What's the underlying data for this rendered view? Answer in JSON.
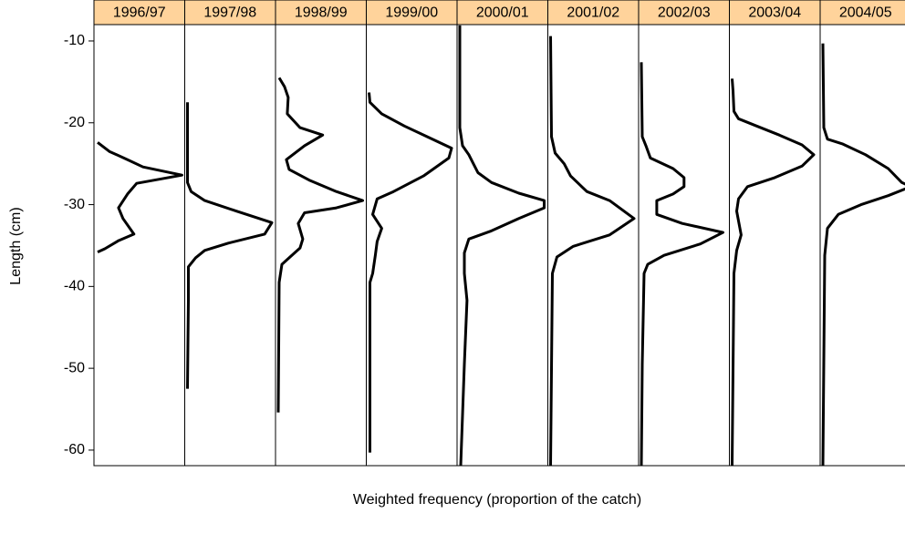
{
  "chart_data": {
    "type": "line",
    "ylabel": "Length (cm)",
    "xlabel": "Weighted frequency (proportion of the catch)",
    "ylim": [
      -61.9,
      -8
    ],
    "yticks": [
      -10,
      -20,
      -30,
      -40,
      -50,
      -60
    ],
    "xlim": [
      0,
      1
    ],
    "color": "#000000",
    "strip_color": "#ffd39b",
    "panels": [
      {
        "name": "1996/97",
        "y": [
          -22.4,
          -23.5,
          -24.5,
          -25.4,
          -26.4,
          -27.4,
          -28.7,
          -30.4,
          -31.7,
          -33.6,
          -34.4,
          -35.4,
          -35.8
        ],
        "x": [
          0.04,
          0.17,
          0.37,
          0.54,
          0.97,
          0.47,
          0.37,
          0.27,
          0.32,
          0.44,
          0.27,
          0.12,
          0.04
        ]
      },
      {
        "name": "1997/98",
        "y": [
          -17.5,
          -27.3,
          -28.4,
          -29.5,
          -30.8,
          -32.2,
          -33.6,
          -34.7,
          -35.6,
          -36.5,
          -37.6,
          -41.7,
          -52.5
        ],
        "x": [
          0.03,
          0.03,
          0.07,
          0.22,
          0.57,
          0.96,
          0.88,
          0.48,
          0.22,
          0.12,
          0.04,
          0.04,
          0.03
        ]
      },
      {
        "name": "1998/99",
        "y": [
          -14.5,
          -15.6,
          -16.9,
          -18.9,
          -20.6,
          -21.5,
          -22.8,
          -24.5,
          -25.7,
          -27.0,
          -28.4,
          -29.5,
          -30.4,
          -31.0,
          -32.3,
          -34.2,
          -35.3,
          -36.3,
          -37.3,
          -39.5,
          -55.4
        ],
        "x": [
          0.04,
          0.1,
          0.14,
          0.13,
          0.27,
          0.52,
          0.32,
          0.12,
          0.15,
          0.37,
          0.67,
          0.96,
          0.67,
          0.32,
          0.25,
          0.3,
          0.27,
          0.17,
          0.07,
          0.04,
          0.03
        ]
      },
      {
        "name": "1999/00",
        "y": [
          -16.3,
          -17.5,
          -18.9,
          -20.4,
          -21.7,
          -23.1,
          -24.3,
          -26.5,
          -28.4,
          -29.3,
          -31.2,
          -32.9,
          -34.5,
          -36.2,
          -38.4,
          -39.5,
          -60.3
        ],
        "x": [
          0.03,
          0.04,
          0.17,
          0.42,
          0.67,
          0.94,
          0.91,
          0.63,
          0.3,
          0.12,
          0.07,
          0.17,
          0.12,
          0.1,
          0.07,
          0.04,
          0.04
        ]
      },
      {
        "name": "2000/01",
        "y": [
          -8.1,
          -20.6,
          -22.8,
          -23.9,
          -25.0,
          -26.1,
          -27.3,
          -28.6,
          -29.5,
          -30.4,
          -31.7,
          -33.2,
          -34.2,
          -35.9,
          -38.4,
          -41.7,
          -49.5,
          -61.9
        ],
        "x": [
          0.03,
          0.03,
          0.06,
          0.13,
          0.18,
          0.23,
          0.38,
          0.68,
          0.96,
          0.96,
          0.68,
          0.38,
          0.13,
          0.08,
          0.08,
          0.11,
          0.08,
          0.04
        ]
      },
      {
        "name": "2001/02",
        "y": [
          -9.4,
          -21.7,
          -23.7,
          -25.0,
          -26.5,
          -28.4,
          -29.5,
          -31.7,
          -33.7,
          -35.1,
          -36.4,
          -38.4,
          -61.9
        ],
        "x": [
          0.03,
          0.04,
          0.08,
          0.18,
          0.25,
          0.43,
          0.68,
          0.95,
          0.68,
          0.28,
          0.1,
          0.05,
          0.03
        ]
      },
      {
        "name": "2002/03",
        "y": [
          -12.6,
          -21.7,
          -22.8,
          -24.3,
          -25.6,
          -26.7,
          -27.8,
          -28.7,
          -29.5,
          -31.2,
          -32.3,
          -33.4,
          -34.8,
          -36.2,
          -37.3,
          -38.4,
          -49.5,
          -61.9
        ],
        "x": [
          0.03,
          0.04,
          0.08,
          0.13,
          0.38,
          0.5,
          0.5,
          0.38,
          0.2,
          0.2,
          0.48,
          0.93,
          0.68,
          0.28,
          0.1,
          0.06,
          0.04,
          0.03
        ]
      },
      {
        "name": "2003/04",
        "y": [
          -14.6,
          -16.1,
          -18.6,
          -19.5,
          -20.4,
          -21.5,
          -22.7,
          -23.9,
          -25.3,
          -26.7,
          -27.8,
          -29.3,
          -30.8,
          -33.7,
          -35.6,
          -38.4,
          -61.9
        ],
        "x": [
          0.03,
          0.04,
          0.05,
          0.1,
          0.3,
          0.55,
          0.8,
          0.93,
          0.8,
          0.5,
          0.2,
          0.1,
          0.08,
          0.13,
          0.08,
          0.05,
          0.03
        ]
      },
      {
        "name": "2004/05",
        "y": [
          -10.3,
          -20.6,
          -22.0,
          -22.6,
          -23.9,
          -25.6,
          -27.3,
          -27.8,
          -28.9,
          -30.0,
          -31.2,
          -32.9,
          -36.2,
          -61.9
        ],
        "x": [
          0.03,
          0.04,
          0.08,
          0.25,
          0.5,
          0.75,
          0.9,
          1.0,
          0.75,
          0.45,
          0.2,
          0.08,
          0.05,
          0.03
        ]
      }
    ]
  }
}
